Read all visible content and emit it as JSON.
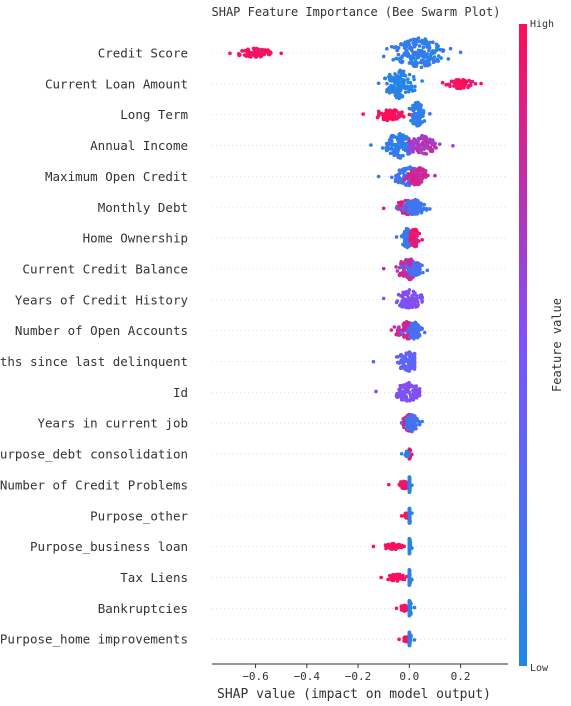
{
  "chart_data": {
    "type": "scatter",
    "subtype": "beeswarm",
    "title": "SHAP Feature Importance (Bee Swarm Plot)",
    "xlabel": "SHAP value (impact on model output)",
    "colorbar_label": "Feature value",
    "colorbar_high": "High",
    "colorbar_low": "Low",
    "xlim": [
      -0.77,
      0.385
    ],
    "xticks": [
      -0.6,
      -0.4,
      -0.2,
      0.0,
      0.2
    ],
    "xtick_labels": [
      "−0.6",
      "−0.4",
      "−0.2",
      "0.0",
      "0.2"
    ],
    "colors": {
      "low": "#1e88e5",
      "mid": "#7c52ff",
      "high": "#ff0d57"
    },
    "features": [
      {
        "name": "Credit Score",
        "groups": [
          {
            "min": -0.7,
            "max": -0.5,
            "center": -0.6,
            "width": 5,
            "color": 1.0
          },
          {
            "min": -0.1,
            "max": 0.2,
            "center": 0.04,
            "width": 16,
            "color": 0.1
          }
        ]
      },
      {
        "name": "Current Loan Amount",
        "groups": [
          {
            "min": -0.12,
            "max": 0.05,
            "center": -0.04,
            "width": 15,
            "color": 0.05
          },
          {
            "min": 0.13,
            "max": 0.28,
            "center": 0.2,
            "width": 5,
            "color": 1.0
          }
        ]
      },
      {
        "name": "Long Term",
        "groups": [
          {
            "min": -0.18,
            "max": 0.0,
            "center": -0.08,
            "width": 6,
            "color": 1.0
          },
          {
            "min": 0.0,
            "max": 0.08,
            "center": 0.03,
            "width": 13,
            "color": 0.1
          }
        ]
      },
      {
        "name": "Annual Income",
        "groups": [
          {
            "min": -0.15,
            "max": 0.03,
            "center": -0.04,
            "width": 13,
            "color": 0.1
          },
          {
            "min": 0.0,
            "max": 0.17,
            "center": 0.05,
            "width": 10,
            "color": 0.7
          }
        ]
      },
      {
        "name": "Maximum Open Credit",
        "groups": [
          {
            "min": -0.12,
            "max": 0.06,
            "center": 0.0,
            "width": 10,
            "color": 0.15
          },
          {
            "min": -0.02,
            "max": 0.1,
            "center": 0.03,
            "width": 10,
            "color": 0.8
          }
        ]
      },
      {
        "name": "Monthly Debt",
        "groups": [
          {
            "min": -0.1,
            "max": 0.04,
            "center": 0.0,
            "width": 8,
            "color": 0.85
          },
          {
            "min": -0.05,
            "max": 0.08,
            "center": 0.02,
            "width": 8,
            "color": 0.2
          }
        ]
      },
      {
        "name": "Home Ownership",
        "groups": [
          {
            "min": -0.05,
            "max": 0.01,
            "center": -0.01,
            "width": 10,
            "color": 0.15
          },
          {
            "min": 0.0,
            "max": 0.05,
            "center": 0.02,
            "width": 10,
            "color": 0.9
          }
        ]
      },
      {
        "name": "Current Credit Balance",
        "groups": [
          {
            "min": -0.1,
            "max": 0.04,
            "center": 0.0,
            "width": 11,
            "color": 0.75
          },
          {
            "min": -0.03,
            "max": 0.07,
            "center": 0.02,
            "width": 7,
            "color": 0.2
          }
        ]
      },
      {
        "name": "Years of Credit History",
        "groups": [
          {
            "min": -0.1,
            "max": 0.05,
            "center": 0.0,
            "width": 10,
            "color": 0.5
          }
        ]
      },
      {
        "name": "Number of Open Accounts",
        "groups": [
          {
            "min": -0.07,
            "max": 0.05,
            "center": -0.01,
            "width": 9,
            "color": 0.85
          },
          {
            "min": -0.03,
            "max": 0.06,
            "center": 0.02,
            "width": 9,
            "color": 0.2
          }
        ]
      },
      {
        "name": "Months since last delinquent",
        "groups": [
          {
            "min": -0.14,
            "max": 0.02,
            "center": 0.0,
            "width": 10,
            "color": 0.35
          }
        ]
      },
      {
        "name": "Id",
        "groups": [
          {
            "min": -0.13,
            "max": 0.04,
            "center": 0.0,
            "width": 10,
            "color": 0.5
          }
        ]
      },
      {
        "name": "Years in current job",
        "groups": [
          {
            "min": -0.03,
            "max": 0.04,
            "center": 0.0,
            "width": 9,
            "color": 0.9
          },
          {
            "min": -0.03,
            "max": 0.05,
            "center": 0.01,
            "width": 9,
            "color": 0.2
          }
        ]
      },
      {
        "name": "Purpose_debt consolidation",
        "groups": [
          {
            "min": 0.0,
            "max": 0.01,
            "center": 0.0,
            "width": 5,
            "color": 1.0
          },
          {
            "min": -0.03,
            "max": 0.0,
            "center": -0.01,
            "width": 3,
            "color": 0.05
          }
        ]
      },
      {
        "name": "Number of Credit Problems",
        "groups": [
          {
            "min": -0.08,
            "max": 0.0,
            "center": -0.02,
            "width": 4,
            "color": 1.0
          },
          {
            "min": 0.0,
            "max": 0.01,
            "center": 0.0,
            "width": 8,
            "color": 0.05
          }
        ]
      },
      {
        "name": "Purpose_other",
        "groups": [
          {
            "min": -0.03,
            "max": 0.0,
            "center": -0.01,
            "width": 3,
            "color": 1.0
          },
          {
            "min": 0.0,
            "max": 0.01,
            "center": 0.0,
            "width": 8,
            "color": 0.05
          }
        ]
      },
      {
        "name": "Purpose_business loan",
        "groups": [
          {
            "min": -0.14,
            "max": -0.02,
            "center": -0.06,
            "width": 3,
            "color": 1.0
          },
          {
            "min": 0.0,
            "max": 0.01,
            "center": 0.0,
            "width": 8,
            "color": 0.05
          }
        ]
      },
      {
        "name": "Tax Liens",
        "groups": [
          {
            "min": -0.11,
            "max": -0.01,
            "center": -0.05,
            "width": 4,
            "color": 1.0
          },
          {
            "min": 0.0,
            "max": 0.01,
            "center": 0.0,
            "width": 8,
            "color": 0.05
          }
        ]
      },
      {
        "name": "Bankruptcies",
        "groups": [
          {
            "min": -0.05,
            "max": 0.0,
            "center": -0.02,
            "width": 3,
            "color": 1.0
          },
          {
            "min": 0.0,
            "max": 0.02,
            "center": 0.0,
            "width": 8,
            "color": 0.05
          }
        ]
      },
      {
        "name": "Purpose_home improvements",
        "groups": [
          {
            "min": -0.04,
            "max": 0.0,
            "center": -0.01,
            "width": 3,
            "color": 1.0
          },
          {
            "min": 0.0,
            "max": 0.02,
            "center": 0.0,
            "width": 7,
            "color": 0.05
          }
        ]
      }
    ]
  }
}
